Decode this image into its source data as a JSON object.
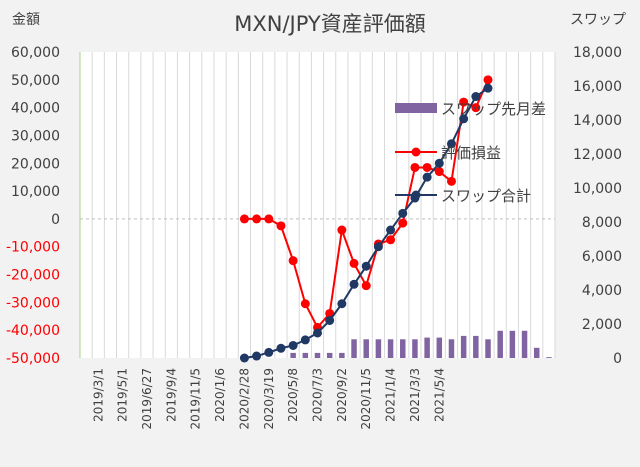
{
  "chart_data": {
    "type": "line",
    "title": "MXN/JPY資産評価額",
    "ylabel_left": "金額",
    "ylabel_right": "スワップ",
    "ylim_left": [
      -50000,
      60000
    ],
    "ylim_right": [
      0,
      18000
    ],
    "left_ticks": [
      "60,000",
      "50,000",
      "40,000",
      "30,000",
      "20,000",
      "10,000",
      "0",
      "-10,000",
      "-20,000",
      "-30,000",
      "-40,000",
      "-50,000"
    ],
    "right_ticks": [
      "18,000",
      "16,000",
      "14,000",
      "12,000",
      "10,000",
      "8,000",
      "6,000",
      "4,000",
      "2,000",
      "0"
    ],
    "x_tick_labels": [
      "2019/3/1",
      "2019/5/1",
      "2019/6/27",
      "2019/9/4",
      "2019/11/5",
      "2020/1/6",
      "2020/2/28",
      "2020/3/19",
      "2020/5/8",
      "2020/7/3",
      "2020/9/2",
      "2020/11/5",
      "2021/1/4",
      "2021/3/3",
      "2021/5/4"
    ],
    "legend_position": "right",
    "gridlines": "vertical",
    "series": [
      {
        "name": "スワップ先月差",
        "kind": "bar",
        "axis": "right",
        "color": "#8064a2",
        "values": [
          null,
          null,
          null,
          null,
          null,
          null,
          null,
          null,
          null,
          null,
          null,
          null,
          null,
          null,
          null,
          null,
          null,
          300,
          300,
          300,
          300,
          300,
          1100,
          1100,
          1100,
          1100,
          1100,
          1100,
          1200,
          1200,
          1100,
          1300,
          1300,
          1100,
          1600,
          1600,
          1600,
          600,
          50
        ]
      },
      {
        "name": "評価損益",
        "kind": "line",
        "axis": "left",
        "color": "#ff0000",
        "values": [
          null,
          null,
          null,
          null,
          null,
          null,
          null,
          null,
          null,
          null,
          null,
          null,
          null,
          0,
          0,
          0,
          -2500,
          -15000,
          -30500,
          -39000,
          -34000,
          -4000,
          -16000,
          -24000,
          -9000,
          -7500,
          -1500,
          18500,
          18500,
          17000,
          13500,
          42000,
          40000,
          50000
        ]
      },
      {
        "name": "スワップ合計",
        "kind": "line",
        "axis": "left",
        "color": "#1f3864",
        "values": [
          null,
          null,
          null,
          null,
          null,
          null,
          null,
          null,
          null,
          null,
          null,
          null,
          null,
          -50000,
          -49300,
          -48000,
          -46500,
          -45500,
          -43500,
          -41000,
          -36500,
          -30500,
          -23500,
          -17000,
          -10000,
          -4000,
          2000,
          7500,
          15000,
          20000,
          27000,
          36000,
          44000,
          47000
        ]
      }
    ]
  }
}
